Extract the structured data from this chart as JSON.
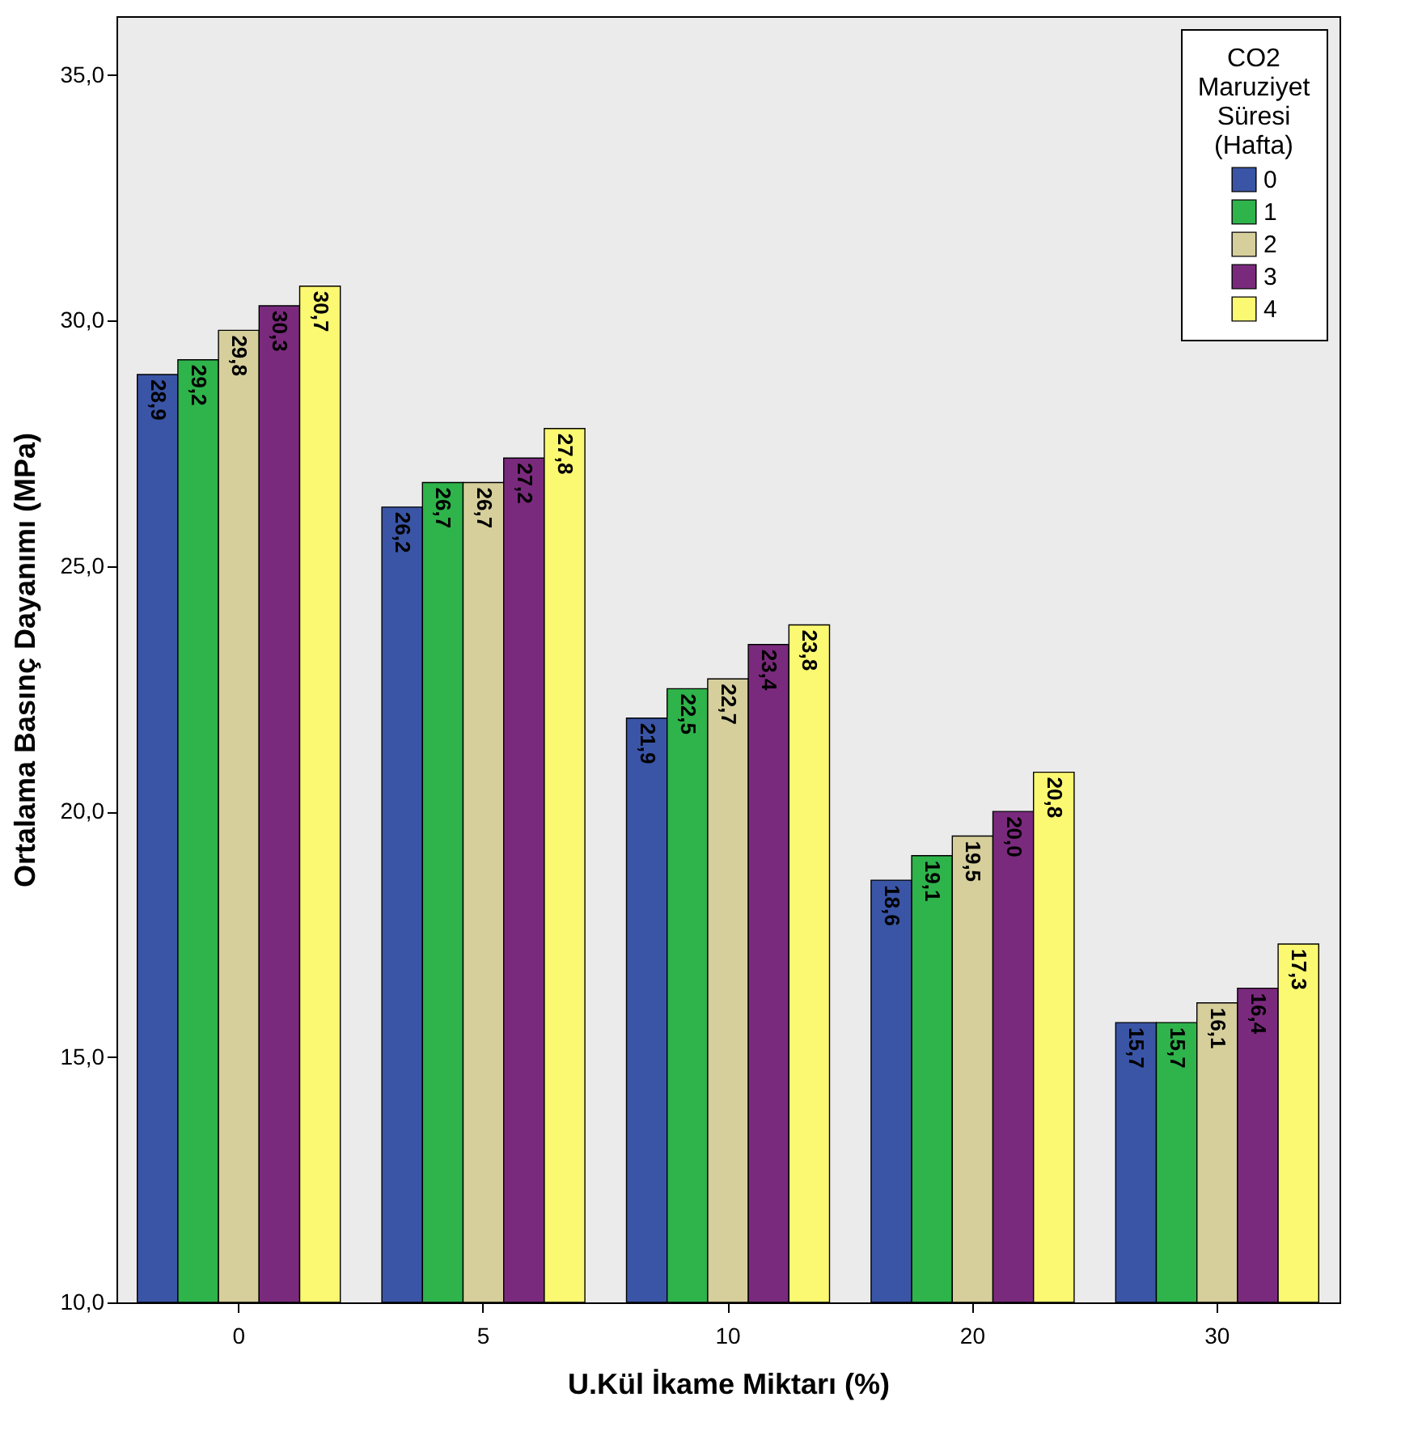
{
  "chart_data": {
    "type": "bar",
    "xlabel": "U.Kül İkame Miktarı (%)",
    "ylabel": "Ortalama Basınç Dayanımı (MPa)",
    "legend_title": "CO2 Maruziyet Süresi (Hafta)",
    "legend": "top right",
    "grid": false,
    "categories": [
      "0",
      "5",
      "10",
      "20",
      "30"
    ],
    "ylim": [
      10,
      36.2
    ],
    "yticks": [
      {
        "value": 10,
        "label": "10,0"
      },
      {
        "value": 15,
        "label": "15,0"
      },
      {
        "value": 20,
        "label": "20,0"
      },
      {
        "value": 25,
        "label": "25,0"
      },
      {
        "value": 30,
        "label": "30,0"
      },
      {
        "value": 35,
        "label": "35,0"
      }
    ],
    "series": [
      {
        "name": "0",
        "color": "#3a55a6",
        "values": [
          28.9,
          26.2,
          21.9,
          18.6,
          15.7
        ],
        "value_labels": [
          "28,9",
          "26,2",
          "21,9",
          "18,6",
          "15,7"
        ]
      },
      {
        "name": "1",
        "color": "#2fb34b",
        "values": [
          29.2,
          26.7,
          22.5,
          19.1,
          15.7
        ],
        "value_labels": [
          "29,2",
          "26,7",
          "22,5",
          "19,1",
          "15,7"
        ]
      },
      {
        "name": "2",
        "color": "#d6cf9c",
        "values": [
          29.8,
          26.7,
          22.7,
          19.5,
          16.1
        ],
        "value_labels": [
          "29,8",
          "26,7",
          "22,7",
          "19,5",
          "16,1"
        ]
      },
      {
        "name": "3",
        "color": "#7a2a7d",
        "values": [
          30.3,
          27.2,
          23.4,
          20.0,
          16.4
        ],
        "value_labels": [
          "30,3",
          "27,2",
          "23,4",
          "20,0",
          "16,4"
        ]
      },
      {
        "name": "4",
        "color": "#fbf872",
        "values": [
          30.7,
          27.8,
          23.8,
          20.8,
          17.3
        ],
        "value_labels": [
          "30,7",
          "27,8",
          "23,8",
          "20,8",
          "17,3"
        ]
      }
    ]
  }
}
